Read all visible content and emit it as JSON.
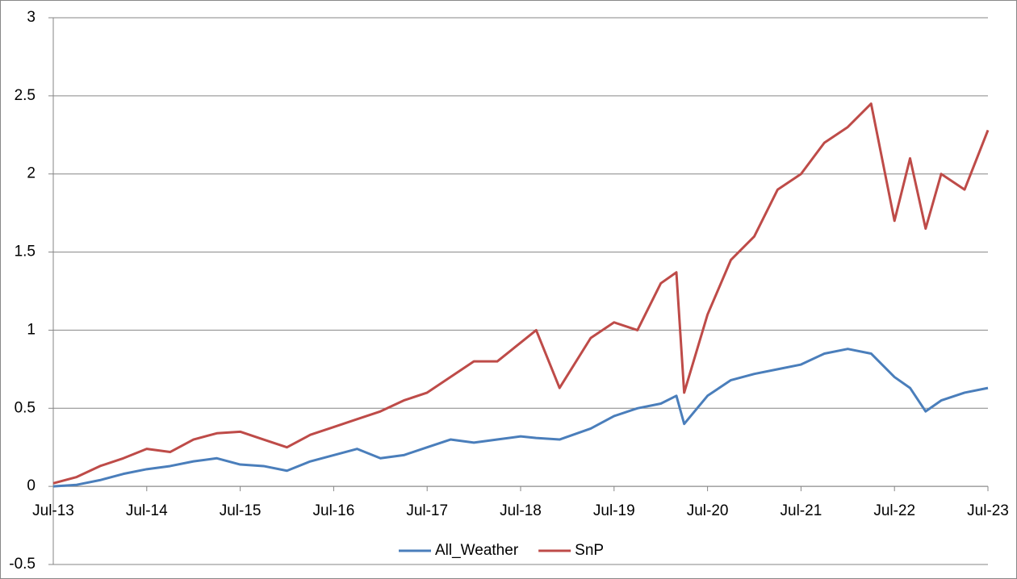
{
  "chart_data": {
    "type": "line",
    "x": [
      "2013-07",
      "2013-10",
      "2014-01",
      "2014-04",
      "2014-07",
      "2014-10",
      "2015-01",
      "2015-04",
      "2015-07",
      "2015-10",
      "2016-01",
      "2016-04",
      "2016-07",
      "2016-10",
      "2017-01",
      "2017-04",
      "2017-07",
      "2017-10",
      "2018-01",
      "2018-04",
      "2018-07",
      "2018-09",
      "2018-12",
      "2019-04",
      "2019-07",
      "2019-10",
      "2020-01",
      "2020-03",
      "2020-04",
      "2020-07",
      "2020-10",
      "2021-01",
      "2021-04",
      "2021-07",
      "2021-10",
      "2022-01",
      "2022-04",
      "2022-07",
      "2022-09",
      "2022-11",
      "2023-01",
      "2023-04",
      "2023-07"
    ],
    "series": [
      {
        "name": "All_Weather",
        "color": "#4a7ebb",
        "values": [
          0,
          0.01,
          0.04,
          0.08,
          0.11,
          0.13,
          0.16,
          0.18,
          0.14,
          0.13,
          0.1,
          0.16,
          0.2,
          0.24,
          0.18,
          0.2,
          0.25,
          0.3,
          0.28,
          0.3,
          0.32,
          0.31,
          0.3,
          0.37,
          0.45,
          0.5,
          0.53,
          0.58,
          0.4,
          0.58,
          0.68,
          0.72,
          0.75,
          0.78,
          0.85,
          0.88,
          0.85,
          0.7,
          0.63,
          0.48,
          0.55,
          0.6,
          0.63
        ]
      },
      {
        "name": "SnP",
        "color": "#be4b48",
        "values": [
          0.02,
          0.06,
          0.13,
          0.18,
          0.24,
          0.22,
          0.3,
          0.34,
          0.35,
          0.3,
          0.25,
          0.33,
          0.38,
          0.43,
          0.48,
          0.55,
          0.6,
          0.7,
          0.8,
          0.8,
          0.92,
          1.0,
          0.63,
          0.95,
          1.05,
          1.0,
          1.3,
          1.37,
          0.6,
          1.1,
          1.45,
          1.6,
          1.9,
          2.0,
          2.2,
          2.3,
          2.45,
          1.7,
          2.1,
          1.65,
          2.0,
          1.9,
          2.28
        ]
      }
    ],
    "xlim": [
      "2013-07",
      "2023-07"
    ],
    "xticks": [
      {
        "value": "2013-07",
        "label": "Jul-13"
      },
      {
        "value": "2014-07",
        "label": "Jul-14"
      },
      {
        "value": "2015-07",
        "label": "Jul-15"
      },
      {
        "value": "2016-07",
        "label": "Jul-16"
      },
      {
        "value": "2017-07",
        "label": "Jul-17"
      },
      {
        "value": "2018-07",
        "label": "Jul-18"
      },
      {
        "value": "2019-07",
        "label": "Jul-19"
      },
      {
        "value": "2020-07",
        "label": "Jul-20"
      },
      {
        "value": "2021-07",
        "label": "Jul-21"
      },
      {
        "value": "2022-07",
        "label": "Jul-22"
      },
      {
        "value": "2023-07",
        "label": "Jul-23"
      }
    ],
    "ylim": [
      -0.5,
      3
    ],
    "yticks": [
      -0.5,
      0,
      0.5,
      1,
      1.5,
      2,
      2.5,
      3
    ],
    "grid": true,
    "legend": "bottom"
  }
}
